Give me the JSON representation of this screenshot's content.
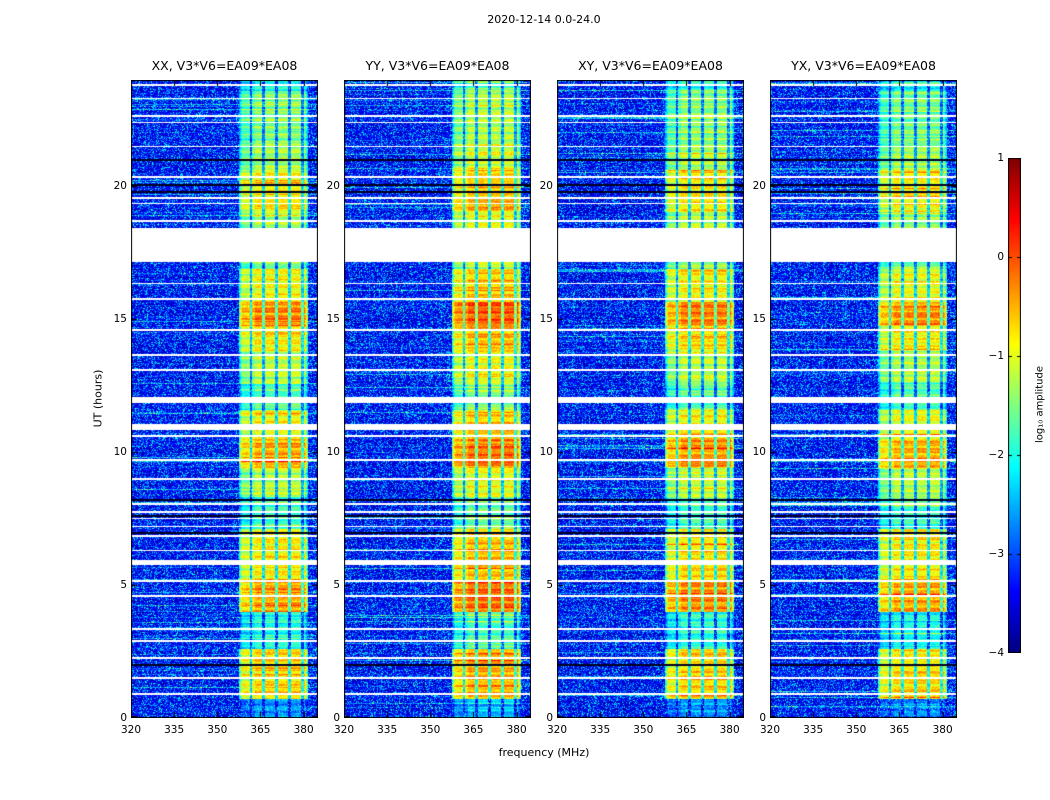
{
  "figure": {
    "title": "2020-12-14 0.0-24.0",
    "xlabel": "frequency (MHz)",
    "ylabel": "UT (hours)",
    "colorbar_label": "log₁₀ amplitude"
  },
  "chart_data": {
    "type": "heatmap",
    "title": "2020-12-14 0.0-24.0",
    "xlabel": "frequency (MHz)",
    "ylabel": "UT (hours)",
    "colormap": "jet",
    "xlim": [
      320,
      385
    ],
    "ylim": [
      0,
      24
    ],
    "x_ticks": [
      320,
      335,
      350,
      365,
      380
    ],
    "y_ticks": [
      0,
      5,
      10,
      15,
      20
    ],
    "colorbar": {
      "label": "log₁₀ amplitude",
      "range": [
        -4,
        1
      ],
      "ticks": [
        1,
        0,
        -1,
        -2,
        -3,
        -4
      ]
    },
    "panels": [
      {
        "title": "XX, V3*V6=EA09*EA08",
        "gain": 0.0
      },
      {
        "title": "YY, V3*V6=EA09*EA08",
        "gain": 0.25
      },
      {
        "title": "XY, V3*V6=EA09*EA08",
        "gain": 0.05
      },
      {
        "title": "YX, V3*V6=EA09*EA08",
        "gain": -0.05
      }
    ],
    "background_level": -3.65,
    "rfi_band": {
      "freq_range": [
        357.5,
        381.5
      ],
      "quiet_level": -2.7,
      "channel_period_mhz": 4.5,
      "channel_gap_frac": 0.18
    },
    "white_gaps": [
      [
        17.15,
        18.45
      ]
    ],
    "white_lines": [
      0.9,
      1.5,
      2.25,
      2.9,
      3.35,
      4.6,
      5.15,
      5.85,
      6.3,
      6.85,
      7.2,
      7.5,
      7.75,
      8.05,
      9.0,
      9.7,
      10.6,
      10.95,
      11.95,
      13.1,
      13.65,
      14.6,
      15.75,
      16.35,
      18.7,
      19.35,
      19.55,
      20.35,
      21.5,
      22.4,
      22.65,
      23.3,
      23.8
    ],
    "wide_white_lines": [
      5.85,
      10.95,
      11.95
    ],
    "dark_lines": [
      2.0,
      6.95,
      7.6,
      8.2,
      19.8,
      20.05,
      21.0
    ],
    "bright_intervals": [
      {
        "t": [
          0.7,
          2.6
        ],
        "level": -0.7
      },
      {
        "t": [
          2.6,
          4.0
        ],
        "level": -2.0
      },
      {
        "t": [
          4.0,
          5.2
        ],
        "level": -0.4
      },
      {
        "t": [
          5.2,
          7.1
        ],
        "level": -0.8
      },
      {
        "t": [
          7.1,
          8.3
        ],
        "level": -1.8
      },
      {
        "t": [
          8.3,
          9.4
        ],
        "level": -1.2
      },
      {
        "t": [
          9.4,
          10.5
        ],
        "level": -0.45
      },
      {
        "t": [
          10.5,
          11.6
        ],
        "level": -0.9
      },
      {
        "t": [
          11.6,
          12.6
        ],
        "level": -1.7
      },
      {
        "t": [
          12.6,
          13.8
        ],
        "level": -1.2
      },
      {
        "t": [
          13.8,
          14.75
        ],
        "level": -0.8
      },
      {
        "t": [
          14.75,
          15.65
        ],
        "level": -0.3
      },
      {
        "t": [
          15.65,
          16.9
        ],
        "level": -0.9
      },
      {
        "t": [
          16.9,
          17.15
        ],
        "level": -1.5
      },
      {
        "t": [
          18.45,
          19.05
        ],
        "level": -1.3
      },
      {
        "t": [
          19.05,
          20.6
        ],
        "level": -0.8
      },
      {
        "t": [
          20.6,
          21.6
        ],
        "level": -1.3
      },
      {
        "t": [
          21.6,
          23.6
        ],
        "level": -1.5
      },
      {
        "t": [
          23.6,
          24.0
        ],
        "level": -2.0
      }
    ]
  }
}
